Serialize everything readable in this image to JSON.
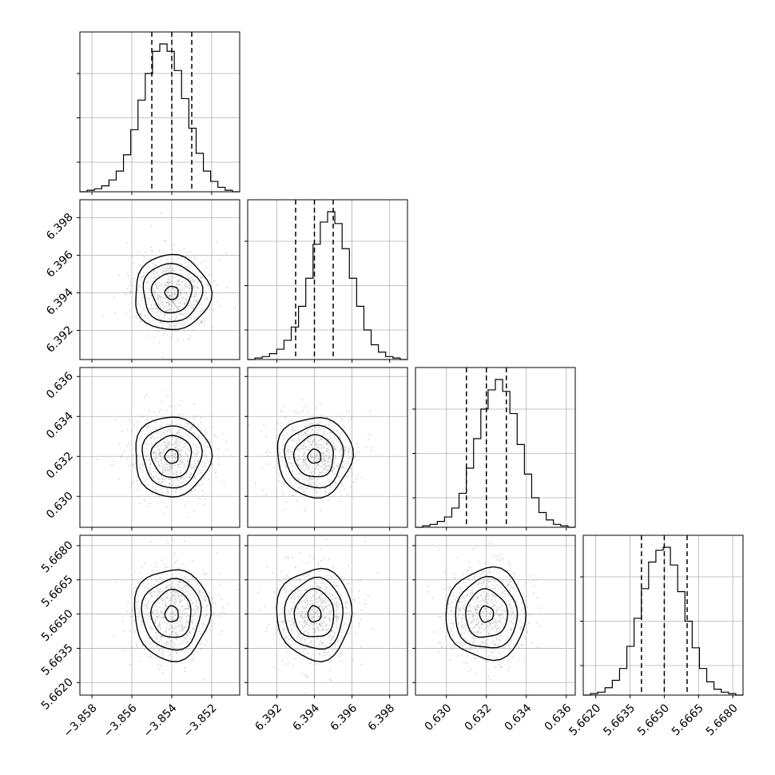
{
  "chart_data": {
    "type": "corner",
    "grid": true,
    "parameters": [
      {
        "range": [
          -3.8586,
          -3.8506
        ],
        "ticks": [
          "−3.858",
          "−3.856",
          "−3.854",
          "−3.852"
        ],
        "tick_values": [
          -3.858,
          -3.856,
          -3.854,
          -3.852
        ],
        "quantiles": [
          -3.855,
          -3.854,
          -3.853
        ],
        "mean": -3.854,
        "sd": 0.00095
      },
      {
        "range": [
          6.39045,
          6.39895
        ],
        "ticks": [
          "6.392",
          "6.394",
          "6.396",
          "6.398"
        ],
        "tick_values": [
          6.392,
          6.394,
          6.396,
          6.398
        ],
        "quantiles": [
          6.393,
          6.394,
          6.395
        ],
        "mean": 6.394,
        "sd": 0.001
      },
      {
        "range": [
          0.62845,
          0.63645
        ],
        "ticks": [
          "0.630",
          "0.632",
          "0.634",
          "0.636"
        ],
        "tick_values": [
          0.63,
          0.632,
          0.634,
          0.636
        ],
        "quantiles": [
          0.631,
          0.632,
          0.633
        ],
        "mean": 0.632,
        "sd": 0.001
      },
      {
        "range": [
          5.66145,
          5.66845
        ],
        "ticks": [
          "5.6620",
          "5.6635",
          "5.6650",
          "5.6665",
          "5.6680"
        ],
        "tick_values": [
          5.662,
          5.6635,
          5.665,
          5.6665,
          5.668
        ],
        "quantiles": [
          5.664,
          5.665,
          5.666
        ],
        "mean": 5.665,
        "sd": 0.001
      }
    ],
    "histograms": [
      {
        "counts": [
          0,
          1,
          2,
          4,
          8,
          14,
          25,
          42,
          62,
          80,
          95,
          100,
          95,
          82,
          63,
          43,
          26,
          14,
          7,
          3,
          1,
          0
        ]
      },
      {
        "counts": [
          0,
          1,
          2,
          4,
          7,
          13,
          22,
          36,
          55,
          78,
          93,
          100,
          92,
          75,
          55,
          36,
          20,
          10,
          5,
          2,
          1,
          0
        ]
      },
      {
        "counts": [
          0,
          1,
          2,
          4,
          7,
          13,
          23,
          40,
          60,
          80,
          93,
          100,
          92,
          77,
          56,
          36,
          20,
          10,
          5,
          2,
          1,
          0
        ]
      },
      {
        "counts": [
          0,
          1,
          2,
          5,
          10,
          18,
          33,
          52,
          72,
          90,
          98,
          100,
          88,
          70,
          50,
          32,
          18,
          9,
          4,
          2,
          1,
          0
        ]
      }
    ]
  }
}
